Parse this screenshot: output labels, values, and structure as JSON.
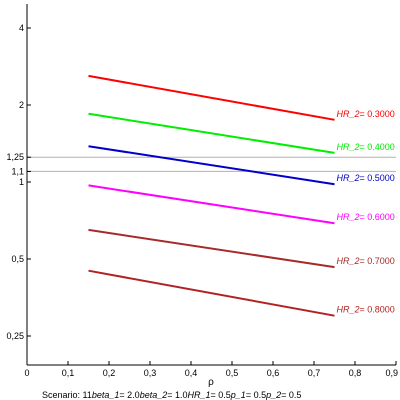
{
  "chart_data": {
    "type": "line",
    "title": "",
    "xlabel": "ρ",
    "ylabel": "",
    "xlim": [
      0,
      0.9
    ],
    "ylim": [
      0.2,
      5
    ],
    "yscale": "log",
    "grid": false,
    "x_ticks": [
      "0",
      "0,1",
      "0,2",
      "0,3",
      "0,4",
      "0,5",
      "0,6",
      "0,7",
      "0,8",
      "0,9"
    ],
    "x_tick_values": [
      0,
      0.1,
      0.2,
      0.3,
      0.4,
      0.5,
      0.6,
      0.7,
      0.8,
      0.9
    ],
    "y_ticks": [
      "0,25",
      "0,5",
      "1",
      "1,1",
      "1,25",
      "2",
      "4"
    ],
    "y_tick_values": [
      0.25,
      0.5,
      1,
      1.1,
      1.25,
      2,
      4
    ],
    "reference_lines": [
      1.1,
      1.25
    ],
    "reference_color": "#b0b0b0",
    "series": [
      {
        "name_var": "HR_2",
        "name_value": "= 0.3000",
        "color": "#ff0000",
        "x": [
          0.15,
          0.75
        ],
        "y": [
          2.6,
          1.75
        ]
      },
      {
        "name_var": "HR_2",
        "name_value": "= 0.4000",
        "color": "#00ee00",
        "x": [
          0.15,
          0.75
        ],
        "y": [
          1.85,
          1.3
        ]
      },
      {
        "name_var": "HR_2",
        "name_value": "= 0.5000",
        "color": "#0000cc",
        "x": [
          0.15,
          0.75
        ],
        "y": [
          1.38,
          0.98
        ]
      },
      {
        "name_var": "HR_2",
        "name_value": "= 0.6000",
        "color": "#ff00ff",
        "x": [
          0.15,
          0.75
        ],
        "y": [
          0.97,
          0.69
        ]
      },
      {
        "name_var": "HR_2",
        "name_value": "= 0.7000",
        "color": "#a52a2a",
        "x": [
          0.15,
          0.75
        ],
        "y": [
          0.65,
          0.465
        ]
      },
      {
        "name_var": "HR_2",
        "name_value": "= 0.8000",
        "color": "#b22222",
        "x": [
          0.15,
          0.75
        ],
        "y": [
          0.45,
          0.3
        ]
      }
    ]
  },
  "caption": {
    "scenario_label": "Scenario:",
    "scenario_value": "11",
    "params": [
      {
        "name": "beta_1",
        "value": "= 2.0"
      },
      {
        "name": "beta_2",
        "value": "= 1.0"
      },
      {
        "name": "HR_1",
        "value": "= 0.5"
      },
      {
        "name": "p_1",
        "value": "= 0.5"
      },
      {
        "name": "p_2",
        "value": "= 0.5"
      }
    ]
  }
}
